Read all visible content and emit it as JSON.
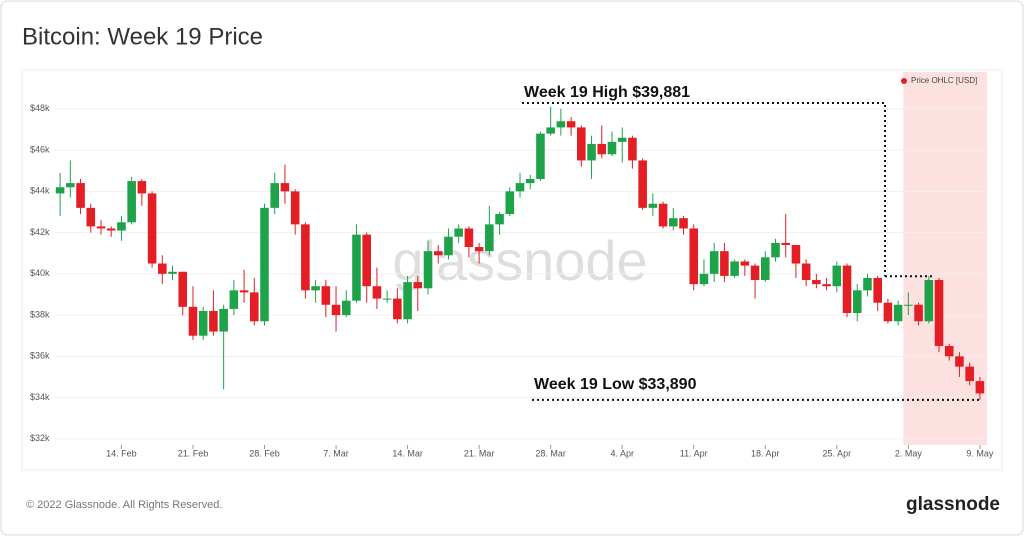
{
  "chart_data": {
    "type": "candlestick",
    "title": "Bitcoin: Week 19 Price",
    "categories": [
      null,
      null,
      null,
      null,
      null,
      null,
      "14. Feb",
      null,
      null,
      null,
      null,
      null,
      null,
      "21. Feb",
      null,
      null,
      null,
      null,
      null,
      null,
      "28. Feb",
      null,
      null,
      null,
      null,
      null,
      null,
      "7. Mar",
      null,
      null,
      null,
      null,
      null,
      null,
      "14. Mar",
      null,
      null,
      null,
      null,
      null,
      null,
      "21. Mar",
      null,
      null,
      null,
      null,
      null,
      null,
      "28. Mar",
      null,
      null,
      null,
      null,
      null,
      null,
      "4. Apr",
      null,
      null,
      null,
      null,
      null,
      null,
      "11. Apr",
      null,
      null,
      null,
      null,
      null,
      null,
      "18. Apr",
      null,
      null,
      null,
      null,
      null,
      null,
      "25. Apr",
      null,
      null,
      null,
      null,
      null,
      null,
      "2. May",
      null,
      null,
      null,
      null,
      null,
      null,
      "9. May"
    ],
    "series": [
      {
        "name": "Price OHLC [USD]",
        "color": "#e31e24",
        "open": [
          43900,
          44200,
          44400,
          43200,
          42300,
          42200,
          42100,
          42500,
          44500,
          43900,
          40500,
          40000,
          40100,
          38400,
          37000,
          38200,
          37200,
          38300,
          39200,
          39100,
          37700,
          43200,
          44400,
          44000,
          42400,
          39200,
          39400,
          38500,
          38000,
          38700,
          41900,
          39400,
          38800,
          38800,
          37800,
          39600,
          39300,
          41100,
          40900,
          41800,
          42200,
          41300,
          41100,
          42400,
          42900,
          44000,
          44400,
          44600,
          46800,
          47100,
          47400,
          47100,
          45500,
          46300,
          45800,
          46400,
          46600,
          45500,
          43200,
          43400,
          42300,
          42700,
          42200,
          39500,
          40000,
          41100,
          39900,
          40600,
          40400,
          39700,
          40800,
          41500,
          41400,
          40500,
          39700,
          39500,
          39400,
          40400,
          38100,
          39200,
          39800,
          38600,
          37700,
          38500,
          38500,
          37700,
          39700,
          36500,
          36000,
          35500,
          34800
        ],
        "high": [
          44900,
          45500,
          44600,
          43400,
          42600,
          42300,
          42800,
          44700,
          44600,
          44000,
          40900,
          40400,
          40100,
          39400,
          38400,
          39200,
          38500,
          39700,
          40200,
          39800,
          43400,
          44900,
          45300,
          44100,
          42500,
          39700,
          39700,
          39400,
          39200,
          42400,
          42000,
          40300,
          39200,
          39300,
          39900,
          39900,
          41600,
          41400,
          42200,
          42400,
          42300,
          41500,
          43300,
          43000,
          44200,
          44900,
          44800,
          46900,
          48100,
          48000,
          47600,
          47200,
          46700,
          47200,
          46900,
          47100,
          46700,
          45600,
          43900,
          43500,
          43200,
          42800,
          42400,
          40700,
          41500,
          41500,
          40700,
          40700,
          40500,
          41100,
          41700,
          42900,
          41400,
          40700,
          40000,
          39800,
          40600,
          40500,
          39500,
          40000,
          39900,
          38800,
          38700,
          39100,
          38600,
          39881,
          39800,
          36600,
          36200,
          35700,
          35000
        ],
        "low": [
          42800,
          43700,
          42900,
          42000,
          41900,
          41800,
          41600,
          42400,
          43300,
          40300,
          39500,
          39700,
          38000,
          36800,
          36800,
          37000,
          34400,
          38000,
          38600,
          37500,
          37500,
          42900,
          43400,
          41900,
          38800,
          38600,
          37900,
          37200,
          37900,
          38600,
          38600,
          38300,
          38600,
          37600,
          37600,
          38200,
          39000,
          40500,
          40700,
          41500,
          40800,
          40500,
          40900,
          41900,
          42800,
          43700,
          44100,
          44500,
          46700,
          46700,
          46700,
          45200,
          44600,
          45600,
          45700,
          45400,
          45100,
          43100,
          42800,
          42200,
          42100,
          41900,
          39200,
          39400,
          39600,
          39600,
          39800,
          39900,
          38800,
          39600,
          40600,
          40800,
          39800,
          39400,
          39300,
          39200,
          39100,
          37900,
          37700,
          38900,
          38200,
          37600,
          37500,
          38000,
          37500,
          37600,
          36200,
          35800,
          35000,
          34600,
          33890
        ],
        "close": [
          44200,
          44400,
          43200,
          42300,
          42200,
          42100,
          42500,
          44500,
          43900,
          40500,
          40000,
          40100,
          38400,
          37000,
          38200,
          37200,
          38300,
          39200,
          39100,
          37700,
          43200,
          44400,
          44000,
          42400,
          39200,
          39400,
          38500,
          38000,
          38700,
          41900,
          39400,
          38800,
          38800,
          37800,
          39600,
          39300,
          41100,
          40900,
          41800,
          42200,
          41300,
          41100,
          42400,
          42900,
          44000,
          44400,
          44600,
          46800,
          47100,
          47400,
          47100,
          45500,
          46300,
          45800,
          46400,
          46600,
          45500,
          43200,
          43400,
          42300,
          42700,
          42200,
          39500,
          40000,
          41100,
          39900,
          40600,
          40400,
          39700,
          40800,
          41500,
          41400,
          40500,
          39700,
          39500,
          39400,
          40400,
          38100,
          39200,
          39800,
          38600,
          37700,
          38500,
          38500,
          37700,
          39700,
          36500,
          36000,
          35500,
          34800,
          34200
        ]
      }
    ],
    "up_color": "#1ea34a",
    "down_color": "#e31e24",
    "ylim": [
      31700,
      49400
    ],
    "yticks": [
      {
        "value": 32000,
        "label": "$32k"
      },
      {
        "value": 34000,
        "label": "$34k"
      },
      {
        "value": 36000,
        "label": "$36k"
      },
      {
        "value": 38000,
        "label": "$38k"
      },
      {
        "value": 40000,
        "label": "$40k"
      },
      {
        "value": 42000,
        "label": "$42k"
      },
      {
        "value": 44000,
        "label": "$44k"
      },
      {
        "value": 46000,
        "label": "$46k"
      },
      {
        "value": 48000,
        "label": "$48k"
      }
    ],
    "grid": true,
    "legend": "top-right",
    "highlight": {
      "from": 83,
      "to": 90,
      "color": "#fde0e0"
    },
    "annotations": [
      {
        "text": "Week 19 High $39,881",
        "value": 39881,
        "at": 85
      },
      {
        "text": "Week 19 Low $33,890",
        "value": 33890,
        "at": 90
      }
    ],
    "watermark": "glassnode"
  },
  "footer": "© 2022 Glassnode. All Rights Reserved.",
  "brand": "glassnode"
}
